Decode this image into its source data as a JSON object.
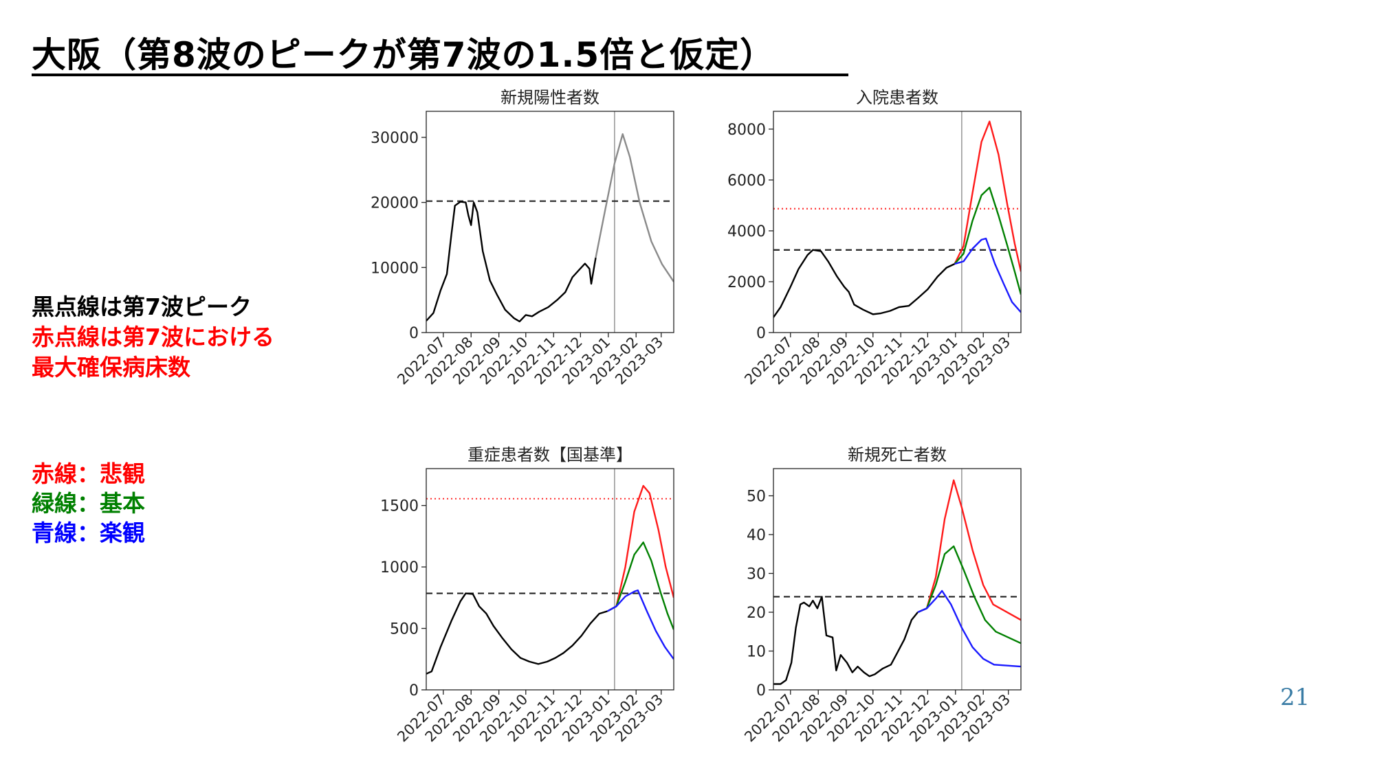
{
  "slide": {
    "title": "大阪（第8波のピークが第7波の1.5倍と仮定）",
    "page_number": "21"
  },
  "notes": {
    "black_dotted": "黒点線は第7波ピーク",
    "red_dotted_line1": "赤点線は第7波における",
    "red_dotted_line2": "最大確保病床数",
    "red_line": "赤線：悲観",
    "green_line": "緑線：基本",
    "blue_line": "青線：楽観"
  },
  "colors": {
    "observed": "#000000",
    "projection_gray": "#8a8a8a",
    "pessimistic": "#ff1a1a",
    "base": "#008000",
    "optimistic": "#1a1aff",
    "note_black": "#000000",
    "note_red": "#ff0000",
    "note_green": "#008000",
    "note_blue": "#0000ff",
    "page_number": "#3a7ca5"
  },
  "x_ticks": [
    "2022-07",
    "2022-08",
    "2022-09",
    "2022-10",
    "2022-11",
    "2022-12",
    "2023-01",
    "2023-02",
    "2023-03"
  ],
  "chart_data": [
    {
      "type": "line",
      "title": "新規陽性者数",
      "xlim": [
        "2022-06-12",
        "2023-03-15"
      ],
      "ylim": [
        0,
        34000
      ],
      "yticks": [
        0,
        10000,
        20000,
        30000
      ],
      "vline": "2023-01-08",
      "hlines": [
        {
          "y": 20200,
          "style": "black-dashed"
        }
      ],
      "series": [
        {
          "role": "observed",
          "points": [
            [
              "2022-06-12",
              1800
            ],
            [
              "2022-06-20",
              3000
            ],
            [
              "2022-06-28",
              6500
            ],
            [
              "2022-07-05",
              9000
            ],
            [
              "2022-07-10",
              15000
            ],
            [
              "2022-07-14",
              19500
            ],
            [
              "2022-07-20",
              20100
            ],
            [
              "2022-07-26",
              20000
            ],
            [
              "2022-07-29",
              18000
            ],
            [
              "2022-08-01",
              16500
            ],
            [
              "2022-08-04",
              20000
            ],
            [
              "2022-08-08",
              18500
            ],
            [
              "2022-08-14",
              12500
            ],
            [
              "2022-08-22",
              8000
            ],
            [
              "2022-08-30",
              5800
            ],
            [
              "2022-09-08",
              3500
            ],
            [
              "2022-09-18",
              2200
            ],
            [
              "2022-09-24",
              1700
            ],
            [
              "2022-10-01",
              2700
            ],
            [
              "2022-10-08",
              2500
            ],
            [
              "2022-10-16",
              3200
            ],
            [
              "2022-10-26",
              3900
            ],
            [
              "2022-11-05",
              5000
            ],
            [
              "2022-11-14",
              6200
            ],
            [
              "2022-11-22",
              8500
            ],
            [
              "2022-11-30",
              9700
            ],
            [
              "2022-12-06",
              10600
            ],
            [
              "2022-12-11",
              9800
            ],
            [
              "2022-12-13",
              7500
            ],
            [
              "2022-12-18",
              11500
            ]
          ]
        },
        {
          "role": "projection",
          "points": [
            [
              "2022-12-18",
              11500
            ],
            [
              "2022-12-28",
              18500
            ],
            [
              "2023-01-08",
              26000
            ],
            [
              "2023-01-17",
              30500
            ],
            [
              "2023-01-25",
              27000
            ],
            [
              "2023-02-05",
              20000
            ],
            [
              "2023-02-18",
              14000
            ],
            [
              "2023-03-02",
              10500
            ],
            [
              "2023-03-15",
              7800
            ]
          ]
        }
      ]
    },
    {
      "type": "line",
      "title": "入院患者数",
      "xlim": [
        "2022-06-12",
        "2023-03-15"
      ],
      "ylim": [
        0,
        8700
      ],
      "yticks": [
        0,
        2000,
        4000,
        6000,
        8000
      ],
      "vline": "2023-01-08",
      "hlines": [
        {
          "y": 3250,
          "style": "black-dashed"
        },
        {
          "y": 4870,
          "style": "red-dotted"
        }
      ],
      "series": [
        {
          "role": "observed",
          "points": [
            [
              "2022-06-12",
              600
            ],
            [
              "2022-06-20",
              1000
            ],
            [
              "2022-07-01",
              1800
            ],
            [
              "2022-07-10",
              2500
            ],
            [
              "2022-07-20",
              3050
            ],
            [
              "2022-07-26",
              3250
            ],
            [
              "2022-08-04",
              3200
            ],
            [
              "2022-08-12",
              2800
            ],
            [
              "2022-08-22",
              2200
            ],
            [
              "2022-08-30",
              1800
            ],
            [
              "2022-09-04",
              1600
            ],
            [
              "2022-09-10",
              1100
            ],
            [
              "2022-09-20",
              900
            ],
            [
              "2022-10-01",
              720
            ],
            [
              "2022-10-10",
              760
            ],
            [
              "2022-10-20",
              850
            ],
            [
              "2022-10-30",
              1000
            ],
            [
              "2022-11-10",
              1050
            ],
            [
              "2022-11-20",
              1350
            ],
            [
              "2022-12-01",
              1700
            ],
            [
              "2022-12-12",
              2200
            ],
            [
              "2022-12-22",
              2550
            ],
            [
              "2022-12-31",
              2700
            ]
          ]
        },
        {
          "role": "pessimistic",
          "points": [
            [
              "2022-12-31",
              2700
            ],
            [
              "2023-01-10",
              3400
            ],
            [
              "2023-01-20",
              5500
            ],
            [
              "2023-01-30",
              7500
            ],
            [
              "2023-02-08",
              8300
            ],
            [
              "2023-02-18",
              7000
            ],
            [
              "2023-02-28",
              5000
            ],
            [
              "2023-03-08",
              3500
            ],
            [
              "2023-03-15",
              2400
            ]
          ]
        },
        {
          "role": "base",
          "points": [
            [
              "2022-12-31",
              2700
            ],
            [
              "2023-01-10",
              3100
            ],
            [
              "2023-01-20",
              4400
            ],
            [
              "2023-01-30",
              5400
            ],
            [
              "2023-02-08",
              5700
            ],
            [
              "2023-02-18",
              4600
            ],
            [
              "2023-02-28",
              3400
            ],
            [
              "2023-03-08",
              2400
            ],
            [
              "2023-03-15",
              1500
            ]
          ]
        },
        {
          "role": "optimistic",
          "points": [
            [
              "2022-12-31",
              2700
            ],
            [
              "2023-01-10",
              2800
            ],
            [
              "2023-01-20",
              3300
            ],
            [
              "2023-01-30",
              3650
            ],
            [
              "2023-02-04",
              3700
            ],
            [
              "2023-02-14",
              2700
            ],
            [
              "2023-02-24",
              1900
            ],
            [
              "2023-03-05",
              1200
            ],
            [
              "2023-03-15",
              800
            ]
          ]
        }
      ]
    },
    {
      "type": "line",
      "title": "重症患者数【国基準】",
      "xlim": [
        "2022-06-12",
        "2023-03-15"
      ],
      "ylim": [
        0,
        1800
      ],
      "yticks": [
        0,
        500,
        1000,
        1500
      ],
      "vline": "2023-01-08",
      "hlines": [
        {
          "y": 785,
          "style": "black-dashed"
        },
        {
          "y": 1555,
          "style": "red-dotted"
        }
      ],
      "series": [
        {
          "role": "observed",
          "points": [
            [
              "2022-06-12",
              130
            ],
            [
              "2022-06-18",
              150
            ],
            [
              "2022-06-28",
              350
            ],
            [
              "2022-07-10",
              560
            ],
            [
              "2022-07-20",
              720
            ],
            [
              "2022-07-26",
              785
            ],
            [
              "2022-08-03",
              780
            ],
            [
              "2022-08-10",
              680
            ],
            [
              "2022-08-18",
              620
            ],
            [
              "2022-08-26",
              520
            ],
            [
              "2022-09-05",
              420
            ],
            [
              "2022-09-15",
              330
            ],
            [
              "2022-09-25",
              260
            ],
            [
              "2022-10-05",
              230
            ],
            [
              "2022-10-15",
              210
            ],
            [
              "2022-10-25",
              230
            ],
            [
              "2022-11-03",
              260
            ],
            [
              "2022-11-12",
              300
            ],
            [
              "2022-11-22",
              360
            ],
            [
              "2022-12-02",
              440
            ],
            [
              "2022-12-12",
              540
            ],
            [
              "2022-12-22",
              620
            ],
            [
              "2022-12-31",
              640
            ]
          ]
        },
        {
          "role": "pessimistic",
          "points": [
            [
              "2022-12-31",
              640
            ],
            [
              "2023-01-10",
              680
            ],
            [
              "2023-01-20",
              1000
            ],
            [
              "2023-01-30",
              1450
            ],
            [
              "2023-02-09",
              1660
            ],
            [
              "2023-02-16",
              1600
            ],
            [
              "2023-02-26",
              1300
            ],
            [
              "2023-03-06",
              1000
            ],
            [
              "2023-03-15",
              750
            ]
          ]
        },
        {
          "role": "base",
          "points": [
            [
              "2022-12-31",
              640
            ],
            [
              "2023-01-10",
              680
            ],
            [
              "2023-01-20",
              880
            ],
            [
              "2023-01-30",
              1100
            ],
            [
              "2023-02-09",
              1200
            ],
            [
              "2023-02-18",
              1050
            ],
            [
              "2023-02-28",
              800
            ],
            [
              "2023-03-08",
              620
            ],
            [
              "2023-03-15",
              490
            ]
          ]
        },
        {
          "role": "optimistic",
          "points": [
            [
              "2022-12-31",
              640
            ],
            [
              "2023-01-10",
              680
            ],
            [
              "2023-01-20",
              760
            ],
            [
              "2023-01-30",
              800
            ],
            [
              "2023-02-03",
              810
            ],
            [
              "2023-02-13",
              640
            ],
            [
              "2023-02-23",
              480
            ],
            [
              "2023-03-05",
              350
            ],
            [
              "2023-03-15",
              250
            ]
          ]
        }
      ]
    },
    {
      "type": "line",
      "title": "新規死亡者数",
      "xlim": [
        "2022-06-12",
        "2023-03-15"
      ],
      "ylim": [
        0,
        57
      ],
      "yticks": [
        0,
        10,
        20,
        30,
        40,
        50
      ],
      "vline": "2023-01-08",
      "hlines": [
        {
          "y": 24,
          "style": "black-dashed"
        }
      ],
      "series": [
        {
          "role": "observed",
          "points": [
            [
              "2022-06-12",
              1.5
            ],
            [
              "2022-06-20",
              1.5
            ],
            [
              "2022-06-26",
              2.5
            ],
            [
              "2022-07-02",
              7
            ],
            [
              "2022-07-07",
              16
            ],
            [
              "2022-07-12",
              22
            ],
            [
              "2022-07-16",
              22.5
            ],
            [
              "2022-07-22",
              21.5
            ],
            [
              "2022-07-26",
              23
            ],
            [
              "2022-07-31",
              21
            ],
            [
              "2022-08-05",
              24
            ],
            [
              "2022-08-10",
              14
            ],
            [
              "2022-08-17",
              13.5
            ],
            [
              "2022-08-21",
              5
            ],
            [
              "2022-08-26",
              9
            ],
            [
              "2022-09-02",
              7
            ],
            [
              "2022-09-08",
              4.5
            ],
            [
              "2022-09-14",
              6
            ],
            [
              "2022-09-21",
              4.5
            ],
            [
              "2022-09-27",
              3.5
            ],
            [
              "2022-10-03",
              4
            ],
            [
              "2022-10-12",
              5.5
            ],
            [
              "2022-10-21",
              6.5
            ],
            [
              "2022-10-28",
              9.5
            ],
            [
              "2022-11-05",
              13
            ],
            [
              "2022-11-13",
              18
            ],
            [
              "2022-11-20",
              20
            ]
          ]
        },
        {
          "role": "pessimistic",
          "points": [
            [
              "2022-11-20",
              20
            ],
            [
              "2022-11-30",
              21
            ],
            [
              "2022-12-10",
              29
            ],
            [
              "2022-12-20",
              44
            ],
            [
              "2022-12-30",
              54
            ],
            [
              "2023-01-08",
              47
            ],
            [
              "2023-01-20",
              36
            ],
            [
              "2023-02-01",
              27
            ],
            [
              "2023-02-12",
              22
            ],
            [
              "2023-03-15",
              18
            ]
          ]
        },
        {
          "role": "base",
          "points": [
            [
              "2022-11-20",
              20
            ],
            [
              "2022-11-30",
              21
            ],
            [
              "2022-12-10",
              27
            ],
            [
              "2022-12-20",
              35
            ],
            [
              "2022-12-30",
              37
            ],
            [
              "2023-01-10",
              31
            ],
            [
              "2023-01-22",
              24
            ],
            [
              "2023-02-03",
              18
            ],
            [
              "2023-02-15",
              15
            ],
            [
              "2023-03-15",
              12
            ]
          ]
        },
        {
          "role": "optimistic",
          "points": [
            [
              "2022-11-20",
              20
            ],
            [
              "2022-11-30",
              21
            ],
            [
              "2022-12-10",
              23.5
            ],
            [
              "2022-12-17",
              25.5
            ],
            [
              "2022-12-27",
              22
            ],
            [
              "2023-01-08",
              16
            ],
            [
              "2023-01-20",
              11
            ],
            [
              "2023-02-01",
              8
            ],
            [
              "2023-02-13",
              6.5
            ],
            [
              "2023-03-15",
              6
            ]
          ]
        }
      ]
    }
  ]
}
